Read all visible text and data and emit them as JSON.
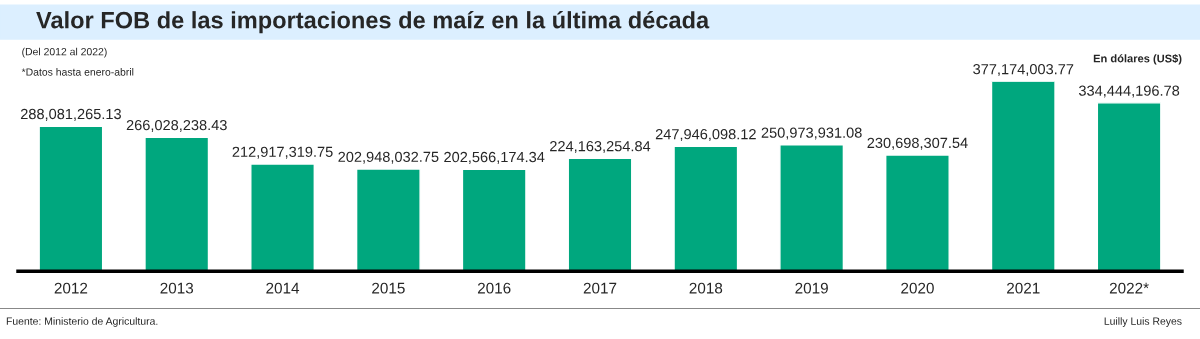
{
  "chart_data": {
    "type": "bar",
    "title": "Valor FOB de las importaciones de maíz en la última década",
    "subtitle": "(Del 2012 al 2022)",
    "ylabel": "En dólares (US$)",
    "categories": [
      "2012",
      "2013",
      "2014",
      "2015",
      "2016",
      "2017",
      "2018",
      "2019",
      "2020",
      "2021",
      "2022*"
    ],
    "values": [
      288081265.13,
      266028238.43,
      212917319.75,
      202948032.75,
      202566174.34,
      224163254.84,
      247946098.12,
      250973931.08,
      230698307.54,
      377174003.77,
      334444196.78
    ],
    "value_labels": [
      "288,081,265.13",
      "266,028,238.43",
      "212,917,319.75",
      "202,948,032.75",
      "202,566,174.34",
      "224,163,254.84",
      "247,946,098.12",
      "250,973,931.08",
      "230,698,307.54",
      "377,174,003.77",
      "334,444,196.78"
    ],
    "color": "#00a77e",
    "grid": false,
    "legend": false,
    "annotations": [
      "*Datos hasta enero-abril",
      "Fuente: Ministerio de Agricultura.",
      "Luilly Luis Reyes"
    ]
  }
}
